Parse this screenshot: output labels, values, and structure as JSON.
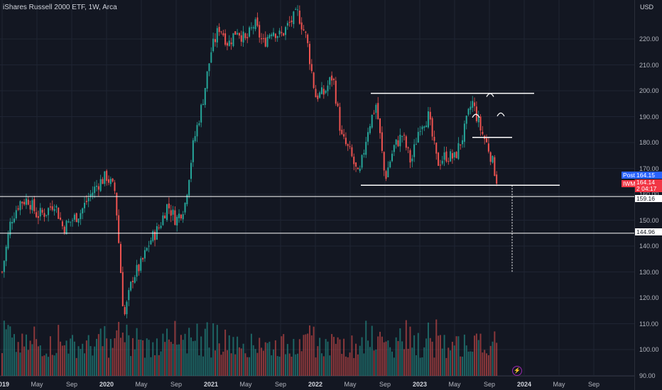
{
  "header": {
    "title": "iShares Russell 2000 ETF, 1W, Arca",
    "currency": "USD"
  },
  "colors": {
    "up": "#26a69a",
    "down": "#ef5350",
    "background": "#131722",
    "grid": "#1f2433",
    "annotation": "#ffffff",
    "post": "#2962ff",
    "symbol": "#f23645"
  },
  "price_tags": {
    "post_label": "Post",
    "post_value": "164.15",
    "symbol_label": "IWM",
    "symbol_value": "164.14",
    "countdown": "2 04:17",
    "level_159": "159.16",
    "level_144": "144.96"
  },
  "event_icon": "lightning-icon",
  "chart_data": {
    "type": "candlestick",
    "title": "iShares Russell 2000 ETF, 1W, Arca",
    "y_axis": {
      "ticks": [
        "220.00",
        "210.00",
        "200.00",
        "190.00",
        "180.00",
        "170.00",
        "160.00",
        "150.00",
        "140.00",
        "130.00",
        "120.00",
        "110.00",
        "100.00",
        "90.00"
      ],
      "range": [
        88,
        232
      ],
      "currency": "USD"
    },
    "x_axis": {
      "ticks": [
        "2019",
        "May",
        "Sep",
        "2020",
        "May",
        "Sep",
        "2021",
        "May",
        "Sep",
        "2022",
        "May",
        "Sep",
        "2023",
        "May",
        "Sep",
        "2024",
        "May",
        "Sep"
      ],
      "years": [
        "2019",
        "2020",
        "2021",
        "2022",
        "2023",
        "2024"
      ]
    },
    "series": [
      {
        "name": "IWM",
        "kind": "price_close_weekly",
        "anchors": [
          [
            "2019-01",
            130
          ],
          [
            "2019-02",
            150
          ],
          [
            "2019-03",
            157
          ],
          [
            "2019-04",
            158
          ],
          [
            "2019-05",
            152
          ],
          [
            "2019-06",
            153
          ],
          [
            "2019-07",
            157
          ],
          [
            "2019-08",
            147
          ],
          [
            "2019-09",
            150
          ],
          [
            "2019-10",
            153
          ],
          [
            "2019-11",
            159
          ],
          [
            "2019-12",
            164
          ],
          [
            "2020-01",
            167
          ],
          [
            "2020-02",
            161
          ],
          [
            "2020-03",
            112
          ],
          [
            "2020-04",
            128
          ],
          [
            "2020-05",
            133
          ],
          [
            "2020-06",
            142
          ],
          [
            "2020-07",
            147
          ],
          [
            "2020-08",
            156
          ],
          [
            "2020-09",
            150
          ],
          [
            "2020-10",
            156
          ],
          [
            "2020-11",
            180
          ],
          [
            "2020-12",
            195
          ],
          [
            "2021-01",
            215
          ],
          [
            "2021-02",
            225
          ],
          [
            "2021-03",
            218
          ],
          [
            "2021-04",
            224
          ],
          [
            "2021-05",
            219
          ],
          [
            "2021-06",
            226
          ],
          [
            "2021-07",
            218
          ],
          [
            "2021-08",
            224
          ],
          [
            "2021-09",
            221
          ],
          [
            "2021-10",
            226
          ],
          [
            "2021-11",
            230
          ],
          [
            "2021-12",
            220
          ],
          [
            "2022-01",
            198
          ],
          [
            "2022-02",
            199
          ],
          [
            "2022-03",
            206
          ],
          [
            "2022-04",
            182
          ],
          [
            "2022-05",
            176
          ],
          [
            "2022-06",
            166
          ],
          [
            "2022-07",
            185
          ],
          [
            "2022-08",
            195
          ],
          [
            "2022-09",
            166
          ],
          [
            "2022-10",
            178
          ],
          [
            "2022-11",
            183
          ],
          [
            "2022-12",
            172
          ],
          [
            "2023-01",
            187
          ],
          [
            "2023-02",
            190
          ],
          [
            "2023-03",
            172
          ],
          [
            "2023-04",
            175
          ],
          [
            "2023-05",
            174
          ],
          [
            "2023-06",
            183
          ],
          [
            "2023-07",
            196
          ],
          [
            "2023-08",
            185
          ],
          [
            "2023-09",
            177
          ],
          [
            "2023-10",
            164
          ]
        ]
      },
      {
        "name": "Volume",
        "kind": "volume_bars",
        "scale": "relative"
      }
    ],
    "annotations": {
      "horizontal_lines": [
        159.16,
        144.96
      ],
      "range_top": 199,
      "range_bottom": 163.5,
      "neckline": 182,
      "head_and_shoulders_arcs": 3,
      "projection_dotted_to": 130,
      "last_price": 164.14
    },
    "grid": true,
    "legend": "none"
  }
}
